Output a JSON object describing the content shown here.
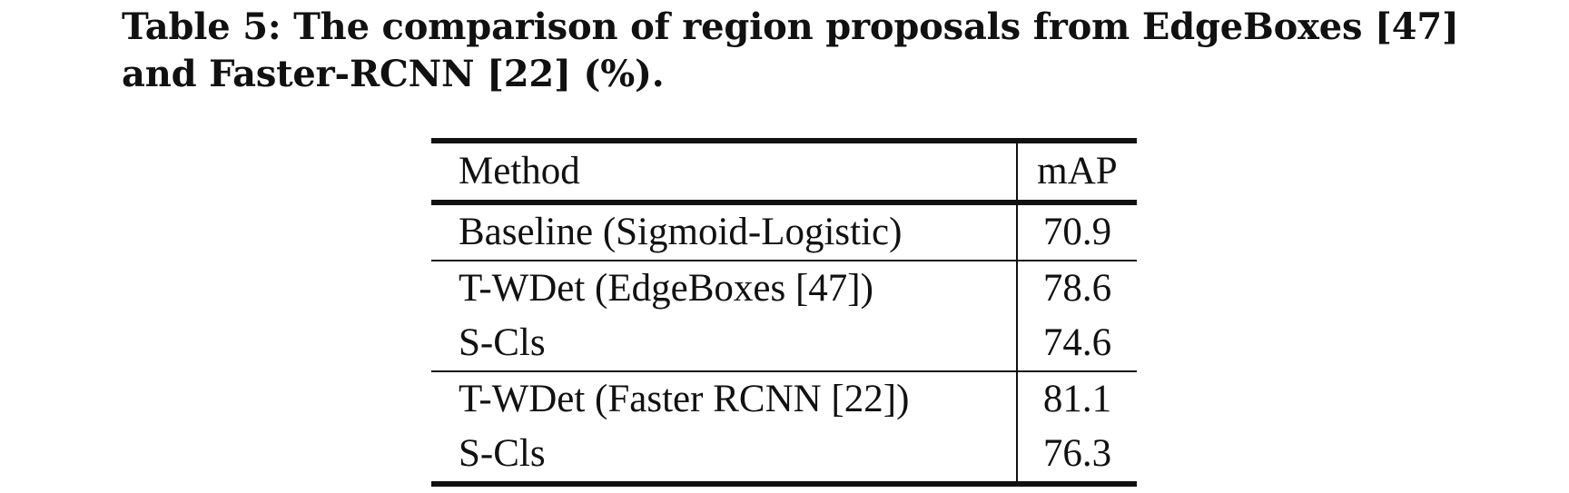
{
  "caption": {
    "line1": "Table 5: The comparison of region proposals from EdgeBoxes [47]",
    "line2": "and Faster-RCNN [22] (%)."
  },
  "table": {
    "header": {
      "method": "Method",
      "map": "mAP"
    },
    "rows": [
      {
        "method": "Baseline (Sigmoid-Logistic)",
        "map": "70.9"
      },
      {
        "method": "T-WDet (EdgeBoxes [47])",
        "map": "78.6"
      },
      {
        "method": "S-Cls",
        "map": "74.6"
      },
      {
        "method": "T-WDet (Faster RCNN [22])",
        "map": "81.1"
      },
      {
        "method": "S-Cls",
        "map": "76.3"
      }
    ]
  }
}
